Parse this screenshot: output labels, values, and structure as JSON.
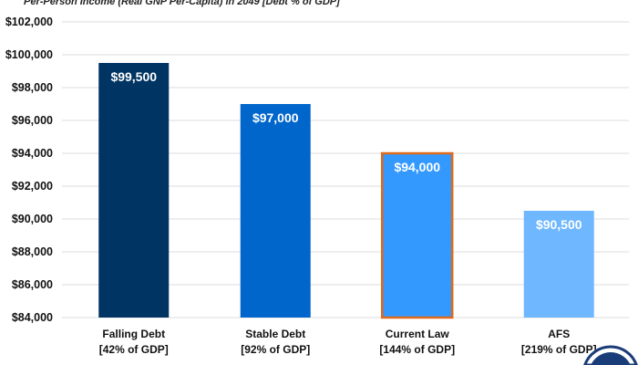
{
  "chart_data": {
    "type": "bar",
    "title": "Per-Person Income (Real GNP Per-Capita) in 2049 [Debt % of GDP]",
    "xlabel": "",
    "ylabel": "",
    "ylim": [
      84000,
      102000
    ],
    "yticks": [
      "$84,000",
      "$86,000",
      "$88,000",
      "$90,000",
      "$92,000",
      "$94,000",
      "$96,000",
      "$98,000",
      "$100,000",
      "$102,000"
    ],
    "ytick_values": [
      84000,
      86000,
      88000,
      90000,
      92000,
      94000,
      96000,
      98000,
      100000,
      102000
    ],
    "grid": true,
    "categories": [
      {
        "line1": "Falling Debt",
        "line2": "[42% of GDP]"
      },
      {
        "line1": "Stable Debt",
        "line2": "[92% of GDP]"
      },
      {
        "line1": "Current Law",
        "line2": "[144% of GDP]"
      },
      {
        "line1": "AFS",
        "line2": "[219% of GDP]"
      }
    ],
    "values": [
      99500,
      97000,
      94000,
      90500
    ],
    "data_labels": [
      "$99,500",
      "$97,000",
      "$94,000",
      "$90,500"
    ],
    "colors": [
      "#003462",
      "#0066cc",
      "#3399ff",
      "#6fb7ff"
    ],
    "highlight_border": {
      "index": 2,
      "color": "#e0691a"
    }
  }
}
